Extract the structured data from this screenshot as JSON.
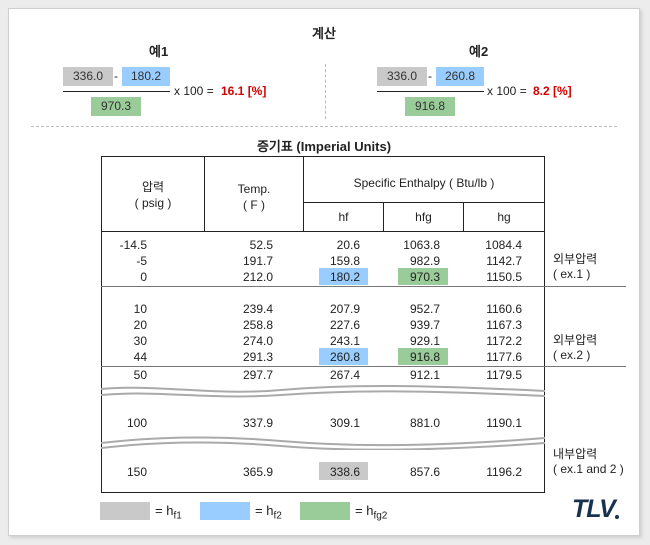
{
  "calc": {
    "title": "계산",
    "ex1": {
      "label": "예1",
      "a": "336.0",
      "minus": "-",
      "b": "180.2",
      "den": "970.3",
      "times": "x 100 =",
      "result": "16.1 [%]"
    },
    "ex2": {
      "label": "예2",
      "a": "336.0",
      "minus": "-",
      "b": "260.8",
      "den": "916.8",
      "times": "x 100 =",
      "result": "8.2 [%]"
    }
  },
  "table": {
    "title": "증기표 (Imperial Units)",
    "headers": {
      "pressure": "압력",
      "pressure_unit": "( psig )",
      "temp": "Temp.",
      "temp_unit": "( F )",
      "enthalpy": "Specific Enthalpy ( Btu/lb )",
      "hf": "hf",
      "hfg": "hfg",
      "hg": "hg"
    },
    "rows": [
      [
        "-14.5",
        "52.5",
        "20.6",
        "1063.8",
        "1084.4"
      ],
      [
        "-5",
        "191.7",
        "159.8",
        "982.9",
        "1142.7"
      ],
      [
        "0",
        "212.0",
        "180.2",
        "970.3",
        "1150.5"
      ],
      [
        "10",
        "239.4",
        "207.9",
        "952.7",
        "1160.6"
      ],
      [
        "20",
        "258.8",
        "227.6",
        "939.7",
        "1167.3"
      ],
      [
        "30",
        "274.0",
        "243.1",
        "929.1",
        "1172.2"
      ],
      [
        "44",
        "291.3",
        "260.8",
        "916.8",
        "1177.6"
      ],
      [
        "50",
        "297.7",
        "267.4",
        "912.1",
        "1179.5"
      ],
      [
        "100",
        "337.9",
        "309.1",
        "881.0",
        "1190.1"
      ],
      [
        "150",
        "365.9",
        "338.6",
        "857.6",
        "1196.2"
      ]
    ],
    "notes": {
      "n1a": "외부압력",
      "n1b": "( ex.1 )",
      "n2a": "외부압력",
      "n2b": "( ex.2 )",
      "n3a": "내부압력",
      "n3b": "( ex.1 and 2 )"
    }
  },
  "legend": {
    "eq": "= h",
    "s1": "f1",
    "s2": "f2",
    "s3": "fg2",
    "colors": {
      "gray": "#c9c9c9",
      "blue": "#99ccff",
      "green": "#99cc99"
    }
  },
  "logo": "TLV"
}
